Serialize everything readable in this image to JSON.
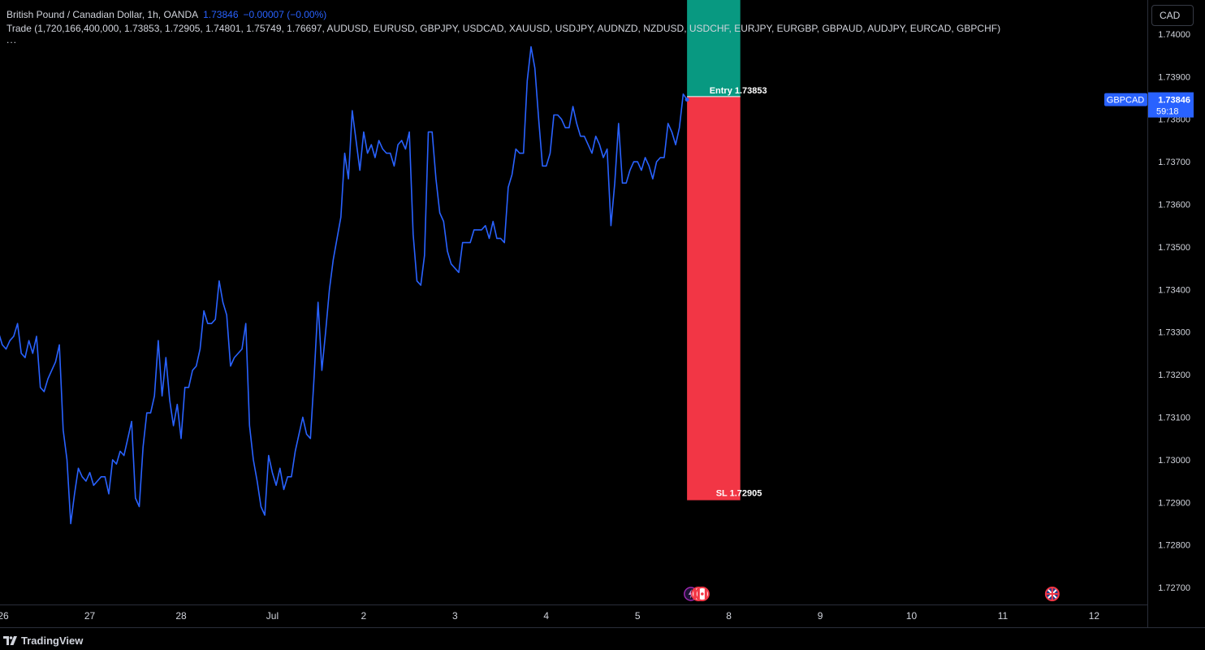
{
  "legend": {
    "title": "British Pound / Canadian Dollar, 1h, OANDA",
    "price": "1.73846",
    "change": "−0.00007 (−0.00%)",
    "indicator": "Trade (1,720,166,400,000, 1.73853, 1.72905, 1.74801, 1.75749, 1.76697, AUDUSD, EURUSD, GBPJPY, USDCAD, XAUUSD, USDJPY, AUDNZD, NZDUSD, USDCHF, EURJPY, EURGBP, GBPAUD, AUDJPY, EURCAD, GBPCHF)",
    "more": "..."
  },
  "currency_button": "CAD",
  "brand": "TradingView",
  "colors": {
    "line": "#2962ff",
    "tp_zone": "#089981",
    "sl_zone": "#f23645",
    "badge": "#2962ff"
  },
  "chart_data": {
    "type": "line",
    "symbol": "GBPCAD",
    "last_price": "1.73846",
    "countdown": "59:18",
    "ylim": [
      1.7266,
      1.7408
    ],
    "y_ticks": [
      "1.74000",
      "1.73900",
      "1.73800",
      "1.73700",
      "1.73600",
      "1.73500",
      "1.73400",
      "1.73300",
      "1.73200",
      "1.73100",
      "1.73000",
      "1.72900",
      "1.72800",
      "1.72700"
    ],
    "x_ticks": [
      {
        "label": "26",
        "index": 0
      },
      {
        "label": "27",
        "index": 24
      },
      {
        "label": "28",
        "index": 48
      },
      {
        "label": "Jul",
        "index": 72
      },
      {
        "label": "2",
        "index": 96
      },
      {
        "label": "3",
        "index": 120
      },
      {
        "label": "4",
        "index": 144
      },
      {
        "label": "5",
        "index": 168
      },
      {
        "label": "8",
        "index": 192
      },
      {
        "label": "9",
        "index": 216
      },
      {
        "label": "10",
        "index": 240
      },
      {
        "label": "11",
        "index": 264
      },
      {
        "label": "12",
        "index": 288
      }
    ],
    "x_range": [
      0.4,
      302
    ],
    "series": [
      {
        "values": [
          1.733,
          1.7327,
          1.7326,
          1.7328,
          1.7329,
          1.7332,
          1.7325,
          1.7324,
          1.7328,
          1.7325,
          1.7329,
          1.7317,
          1.7316,
          1.7319,
          1.7321,
          1.7323,
          1.7327,
          1.7307,
          1.73,
          1.7285,
          1.7292,
          1.7298,
          1.7296,
          1.7295,
          1.7297,
          1.7294,
          1.7295,
          1.7296,
          1.7296,
          1.7292,
          1.73,
          1.7299,
          1.7302,
          1.7301,
          1.7305,
          1.7309,
          1.7291,
          1.7289,
          1.7303,
          1.7311,
          1.7311,
          1.7315,
          1.7328,
          1.7315,
          1.7324,
          1.7314,
          1.7308,
          1.7313,
          1.7305,
          1.7317,
          1.7317,
          1.7321,
          1.7322,
          1.7326,
          1.7335,
          1.7332,
          1.7332,
          1.7333,
          1.7342,
          1.7337,
          1.7334,
          1.7322,
          1.7324,
          1.7325,
          1.7326,
          1.7332,
          1.7308,
          1.73,
          1.7295,
          1.7289,
          1.7287,
          1.7301,
          1.7297,
          1.7294,
          1.7298,
          1.7293,
          1.7296,
          1.7296,
          1.7302,
          1.7306,
          1.731,
          1.7306,
          1.7305,
          1.732,
          1.7337,
          1.7321,
          1.733,
          1.734,
          1.7347,
          1.7352,
          1.7357,
          1.7372,
          1.7366,
          1.7382,
          1.7375,
          1.7368,
          1.7377,
          1.7372,
          1.7374,
          1.7371,
          1.7375,
          1.7373,
          1.7372,
          1.7372,
          1.7369,
          1.7374,
          1.7375,
          1.7373,
          1.7377,
          1.7353,
          1.7342,
          1.7341,
          1.7348,
          1.7377,
          1.7377,
          1.7366,
          1.7358,
          1.7356,
          1.7349,
          1.7346,
          1.7345,
          1.7344,
          1.7351,
          1.7351,
          1.7351,
          1.7354,
          1.7354,
          1.7354,
          1.7355,
          1.7352,
          1.7356,
          1.7352,
          1.7352,
          1.7351,
          1.7364,
          1.7367,
          1.7373,
          1.7372,
          1.7372,
          1.7389,
          1.7397,
          1.7392,
          1.738,
          1.7369,
          1.7369,
          1.7372,
          1.7381,
          1.7381,
          1.738,
          1.7378,
          1.7378,
          1.7383,
          1.7379,
          1.7376,
          1.7376,
          1.7374,
          1.7372,
          1.7376,
          1.7374,
          1.7371,
          1.7373,
          1.7355,
          1.7365,
          1.7379,
          1.7365,
          1.7365,
          1.7368,
          1.737,
          1.737,
          1.7368,
          1.7371,
          1.7369,
          1.7366,
          1.737,
          1.7371,
          1.7371,
          1.7379,
          1.7377,
          1.7374,
          1.7378,
          1.73859,
          1.73846
        ]
      }
    ],
    "position": {
      "entry_label": "Entry 1.73853",
      "entry_price": 1.73853,
      "sl_label": "SL 1.72905",
      "sl_price": 1.72905,
      "tp_top": 1.7408,
      "start_index": 181,
      "end_index": 195
    },
    "event_markers": [
      {
        "name": "lightning-icon",
        "index": 182
      },
      {
        "name": "canada-flag-icon",
        "index": 184
      },
      {
        "name": "canada-flag-icon",
        "index": 185
      },
      {
        "name": "uk-flag-icon",
        "index": 277
      }
    ]
  }
}
